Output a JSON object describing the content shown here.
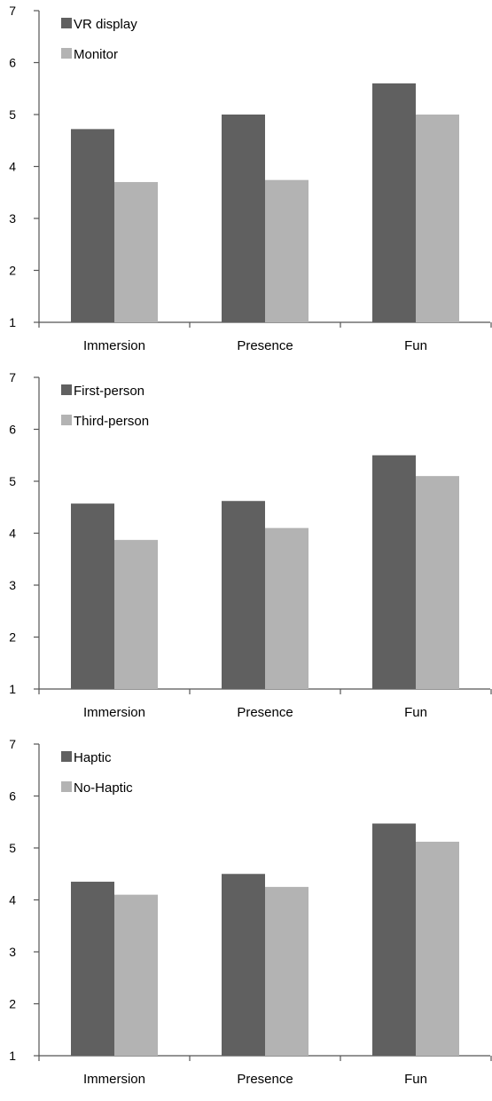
{
  "chart_data": [
    {
      "type": "bar",
      "categories": [
        "Immersion",
        "Presence",
        "Fun"
      ],
      "series": [
        {
          "name": "VR display",
          "values": [
            4.72,
            5.0,
            5.6
          ],
          "color": "#606060"
        },
        {
          "name": "Monitor",
          "values": [
            3.7,
            3.74,
            5.0
          ],
          "color": "#b3b3b3"
        }
      ],
      "ylim": [
        1,
        7
      ],
      "yticks": [
        "1",
        "2",
        "3",
        "4",
        "5",
        "6",
        "7"
      ],
      "grid": false,
      "legend_position": "top-left"
    },
    {
      "type": "bar",
      "categories": [
        "Immersion",
        "Presence",
        "Fun"
      ],
      "series": [
        {
          "name": "First-person",
          "values": [
            4.57,
            4.62,
            5.5
          ],
          "color": "#606060"
        },
        {
          "name": "Third-person",
          "values": [
            3.87,
            4.1,
            5.1
          ],
          "color": "#b3b3b3"
        }
      ],
      "ylim": [
        1,
        7
      ],
      "yticks": [
        "1",
        "2",
        "3",
        "4",
        "5",
        "6",
        "7"
      ],
      "grid": false,
      "legend_position": "top-left"
    },
    {
      "type": "bar",
      "categories": [
        "Immersion",
        "Presence",
        "Fun"
      ],
      "series": [
        {
          "name": "Haptic",
          "values": [
            4.35,
            4.5,
            5.47
          ],
          "color": "#606060"
        },
        {
          "name": "No-Haptic",
          "values": [
            4.1,
            4.25,
            5.12
          ],
          "color": "#b3b3b3"
        }
      ],
      "ylim": [
        1,
        7
      ],
      "yticks": [
        "1",
        "2",
        "3",
        "4",
        "5",
        "6",
        "7"
      ],
      "grid": false,
      "legend_position": "top-left"
    }
  ]
}
